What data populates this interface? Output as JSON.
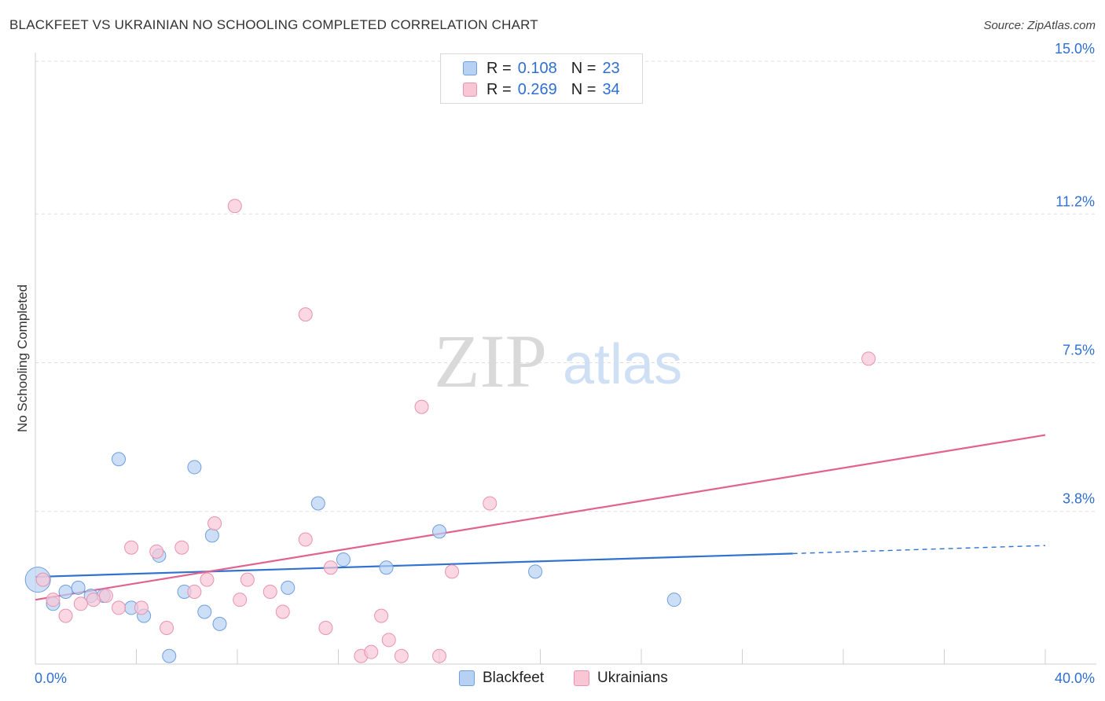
{
  "header": {
    "title": "BLACKFEET VS UKRAINIAN NO SCHOOLING COMPLETED CORRELATION CHART",
    "source": "Source: ZipAtlas.com"
  },
  "watermark": {
    "zip": "ZIP",
    "atlas": "atlas"
  },
  "colors": {
    "blue_fill": "#b7d1f3",
    "blue_stroke": "#6f9fe0",
    "blue_line": "#2f72cf",
    "pink_fill": "#f8c6d5",
    "pink_stroke": "#ea92ae",
    "pink_line": "#e2628f",
    "tick_label": "#2f6fd0"
  },
  "legend": {
    "rows": [
      {
        "r_label": "R =",
        "r_value": "0.108",
        "n_label": "N =",
        "n_value": "23"
      },
      {
        "r_label": "R =",
        "r_value": "0.269",
        "n_label": "N =",
        "n_value": "34"
      }
    ]
  },
  "bottom_legend": {
    "items": [
      "Blackfeet",
      "Ukrainians"
    ]
  },
  "chart_data": {
    "type": "scatter",
    "title": "BLACKFEET VS UKRAINIAN NO SCHOOLING COMPLETED CORRELATION CHART",
    "xlabel": "",
    "ylabel": "No Schooling Completed",
    "xlim": [
      0,
      40
    ],
    "ylim": [
      0,
      15
    ],
    "x_tick_labels": [
      "0.0%",
      "40.0%"
    ],
    "y_ticks": [
      3.8,
      7.5,
      11.2,
      15.0
    ],
    "y_tick_labels": [
      "3.8%",
      "7.5%",
      "11.2%",
      "15.0%"
    ],
    "grid": true,
    "legend_position": "top-center",
    "series": [
      {
        "name": "Blackfeet",
        "color": "#b7d1f3",
        "r": 0.108,
        "n": 23,
        "points": [
          [
            0.1,
            2.1,
            "large"
          ],
          [
            0.7,
            1.5
          ],
          [
            1.2,
            1.8
          ],
          [
            1.7,
            1.9
          ],
          [
            2.2,
            1.7
          ],
          [
            2.7,
            1.7
          ],
          [
            3.3,
            5.1
          ],
          [
            3.8,
            1.4
          ],
          [
            4.3,
            1.2
          ],
          [
            4.9,
            2.7
          ],
          [
            5.3,
            0.2
          ],
          [
            5.9,
            1.8
          ],
          [
            6.3,
            4.9
          ],
          [
            6.7,
            1.3
          ],
          [
            7.0,
            3.2
          ],
          [
            7.3,
            1.0
          ],
          [
            10.0,
            1.9
          ],
          [
            11.2,
            4.0
          ],
          [
            12.2,
            2.6
          ],
          [
            13.9,
            2.4
          ],
          [
            16.0,
            3.3
          ],
          [
            19.8,
            2.3
          ],
          [
            25.3,
            1.6
          ]
        ],
        "trend": {
          "x0": 0,
          "y0": 2.17,
          "x1": 30,
          "y1": 2.75,
          "dash_x1": 40,
          "dash_y1": 2.95
        }
      },
      {
        "name": "Ukrainians",
        "color": "#f8c6d5",
        "r": 0.269,
        "n": 34,
        "points": [
          [
            0.3,
            2.1
          ],
          [
            0.7,
            1.6
          ],
          [
            1.2,
            1.2
          ],
          [
            1.8,
            1.5
          ],
          [
            2.3,
            1.6
          ],
          [
            2.8,
            1.7
          ],
          [
            3.3,
            1.4
          ],
          [
            3.8,
            2.9
          ],
          [
            4.2,
            1.4
          ],
          [
            4.8,
            2.8
          ],
          [
            5.2,
            0.9
          ],
          [
            5.8,
            2.9
          ],
          [
            6.3,
            1.8
          ],
          [
            6.8,
            2.1
          ],
          [
            7.1,
            3.5
          ],
          [
            7.9,
            11.4
          ],
          [
            8.1,
            1.6
          ],
          [
            8.4,
            2.1
          ],
          [
            9.3,
            1.8
          ],
          [
            9.8,
            1.3
          ],
          [
            10.7,
            3.1
          ],
          [
            10.7,
            8.7
          ],
          [
            11.5,
            0.9
          ],
          [
            11.7,
            2.4
          ],
          [
            12.9,
            0.2
          ],
          [
            13.3,
            0.3
          ],
          [
            13.7,
            1.2
          ],
          [
            14.0,
            0.6
          ],
          [
            14.5,
            0.2
          ],
          [
            15.3,
            6.4
          ],
          [
            16.0,
            0.2
          ],
          [
            16.5,
            2.3
          ],
          [
            18.0,
            4.0
          ],
          [
            33.0,
            7.6
          ]
        ],
        "trend": {
          "x0": 0,
          "y0": 1.6,
          "x1": 40,
          "y1": 5.7
        }
      }
    ]
  }
}
